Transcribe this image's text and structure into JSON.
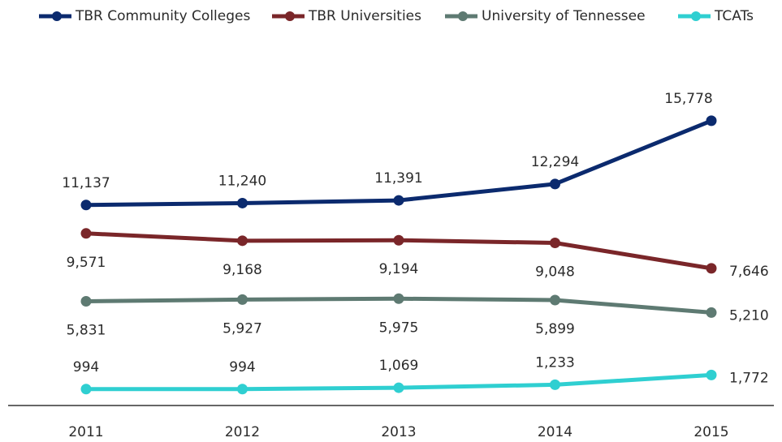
{
  "chart_data": {
    "type": "line",
    "categories": [
      "2011",
      "2012",
      "2013",
      "2014",
      "2015"
    ],
    "series": [
      {
        "name": "TBR Community Colleges",
        "color": "#0b2a6e",
        "values": [
          11137,
          11240,
          11391,
          12294,
          15778
        ],
        "value_labels": [
          "11,137",
          "11,240",
          "11,391",
          "12,294",
          "15,778"
        ]
      },
      {
        "name": "TBR Universities",
        "color": "#7a2629",
        "values": [
          9571,
          9168,
          9194,
          9048,
          7646
        ],
        "value_labels": [
          "9,571",
          "9,168",
          "9,194",
          "9,048",
          "7,646"
        ]
      },
      {
        "name": "University of Tennessee",
        "color": "#5e7a72",
        "values": [
          5831,
          5927,
          5975,
          5899,
          5210
        ],
        "value_labels": [
          "5,831",
          "5,927",
          "5,975",
          "5,899",
          "5,210"
        ]
      },
      {
        "name": "TCATs",
        "color": "#2fcfd1",
        "values": [
          994,
          994,
          1069,
          1233,
          1772
        ],
        "value_labels": [
          "994",
          "994",
          "1,069",
          "1,233",
          "1,772"
        ]
      }
    ],
    "legend": "top"
  }
}
